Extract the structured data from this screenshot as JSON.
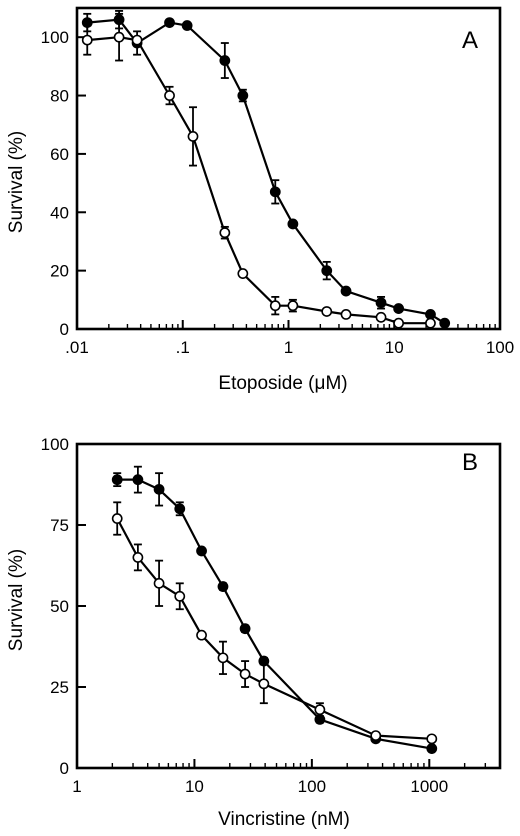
{
  "chart_data": [
    {
      "type": "line",
      "panel_label": "A",
      "xlabel": "Etoposide (μM)",
      "ylabel": "Survival (%)",
      "x_scale": "log",
      "xlim": [
        0.01,
        100
      ],
      "ylim": [
        0,
        110
      ],
      "x_ticks": [
        {
          "v": 0.01,
          "label": ".01"
        },
        {
          "v": 0.1,
          "label": ".1"
        },
        {
          "v": 1,
          "label": "1"
        },
        {
          "v": 10,
          "label": "10"
        },
        {
          "v": 100,
          "label": "100"
        }
      ],
      "y_ticks": [
        {
          "v": 0,
          "label": "0"
        },
        {
          "v": 20,
          "label": "20"
        },
        {
          "v": 40,
          "label": "40"
        },
        {
          "v": 60,
          "label": "60"
        },
        {
          "v": 80,
          "label": "80"
        },
        {
          "v": 100,
          "label": "100"
        }
      ],
      "series": [
        {
          "marker": "filled",
          "x": [
            0.0125,
            0.025,
            0.037,
            0.075,
            0.11,
            0.25,
            0.37,
            0.75,
            1.1,
            2.3,
            3.5,
            7.5,
            11,
            22,
            30
          ],
          "y": [
            105,
            106,
            98,
            105,
            104,
            92,
            80,
            47,
            36,
            20,
            13,
            9,
            7,
            5,
            2
          ],
          "err": [
            3,
            3,
            4,
            0,
            0,
            6,
            2,
            4,
            0,
            3,
            0,
            2,
            0,
            0,
            0
          ]
        },
        {
          "marker": "open",
          "x": [
            0.0125,
            0.025,
            0.037,
            0.075,
            0.125,
            0.25,
            0.37,
            0.75,
            1.1,
            2.3,
            3.5,
            7.5,
            11,
            22
          ],
          "y": [
            99,
            100,
            99,
            80,
            66,
            33,
            19,
            8,
            8,
            6,
            5,
            4,
            2,
            2
          ],
          "err": [
            5,
            8,
            0,
            3,
            10,
            2,
            0,
            3,
            2,
            0,
            0,
            0,
            0,
            0
          ]
        }
      ]
    },
    {
      "type": "line",
      "panel_label": "B",
      "xlabel": "Vincristine (nM)",
      "ylabel": "Survival (%)",
      "x_scale": "log",
      "xlim": [
        1,
        4000
      ],
      "ylim": [
        0,
        100
      ],
      "x_ticks": [
        {
          "v": 1,
          "label": "1"
        },
        {
          "v": 10,
          "label": "10"
        },
        {
          "v": 100,
          "label": "100"
        },
        {
          "v": 1000,
          "label": "1000"
        }
      ],
      "y_ticks": [
        {
          "v": 0,
          "label": "0"
        },
        {
          "v": 25,
          "label": "25"
        },
        {
          "v": 50,
          "label": "50"
        },
        {
          "v": 75,
          "label": "75"
        },
        {
          "v": 100,
          "label": "100"
        }
      ],
      "series": [
        {
          "marker": "filled",
          "x": [
            2.2,
            3.3,
            5,
            7.5,
            11.5,
            17.5,
            27,
            39,
            117,
            350,
            1050
          ],
          "y": [
            89,
            89,
            86,
            80,
            67,
            56,
            43,
            33,
            15,
            9,
            6
          ],
          "err": [
            2,
            4,
            5,
            2,
            0,
            1,
            1,
            1,
            1,
            0,
            0
          ]
        },
        {
          "marker": "open",
          "x": [
            2.2,
            3.3,
            5,
            7.5,
            11.5,
            17.5,
            27,
            39,
            117,
            350,
            1050
          ],
          "y": [
            77,
            65,
            57,
            53,
            41,
            34,
            29,
            26,
            18,
            10,
            9
          ],
          "err": [
            5,
            4,
            7,
            4,
            0,
            5,
            4,
            6,
            2,
            0,
            0
          ]
        }
      ]
    }
  ]
}
